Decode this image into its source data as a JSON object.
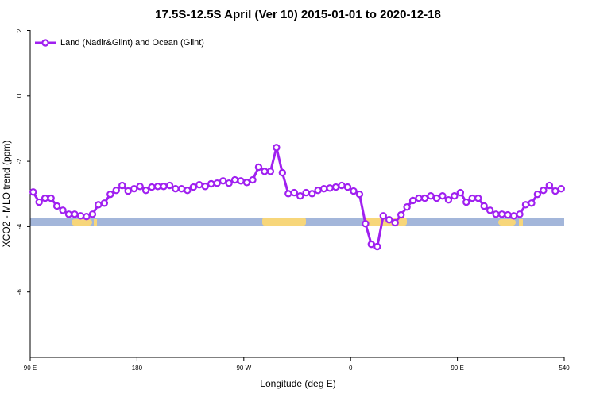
{
  "chart_data": {
    "type": "line",
    "title": "17.5S-12.5S April (Ver 10)   2015-01-01 to 2020-12-18",
    "x_label": "Longitude (deg E)",
    "y_label": "XCO2 - MLO trend (ppm)",
    "x": [
      92.5,
      97.5,
      102.5,
      107.5,
      112.5,
      117.5,
      122.5,
      127.5,
      132.5,
      137.5,
      142.5,
      147.5,
      152.5,
      157.5,
      162.5,
      167.5,
      172.5,
      177.5,
      182.5,
      187.5,
      192.5,
      197.5,
      202.5,
      207.5,
      212.5,
      217.5,
      222.5,
      227.5,
      232.5,
      237.5,
      242.5,
      247.5,
      252.5,
      257.5,
      262.5,
      267.5,
      272.5,
      277.5,
      282.5,
      287.5,
      292.5,
      297.5,
      302.5,
      307.5,
      312.5,
      317.5,
      322.5,
      327.5,
      332.5,
      337.5,
      342.5,
      347.5,
      352.5,
      357.5,
      362.5,
      367.5,
      372.5,
      377.5,
      382.5,
      387.5,
      392.5,
      397.5,
      402.5,
      407.5,
      412.5,
      417.5,
      422.5,
      427.5,
      432.5,
      437.5,
      442.5,
      447.5,
      452.5,
      457.5,
      462.5,
      467.5,
      472.5,
      477.5,
      482.5,
      487.5,
      492.5,
      497.5,
      502.5,
      507.5,
      512.5,
      517.5,
      522.5,
      527.5,
      532.5,
      537.5
    ],
    "series": [
      {
        "name": "Land (Nadir&Glint) and Ocean (Glint)",
        "color": "#a020f0",
        "values": [
          -2.94,
          -3.25,
          -3.13,
          -3.13,
          -3.37,
          -3.5,
          -3.62,
          -3.62,
          -3.67,
          -3.69,
          -3.62,
          -3.33,
          -3.28,
          -3.01,
          -2.89,
          -2.74,
          -2.91,
          -2.84,
          -2.77,
          -2.89,
          -2.79,
          -2.77,
          -2.77,
          -2.74,
          -2.84,
          -2.84,
          -2.89,
          -2.79,
          -2.72,
          -2.77,
          -2.69,
          -2.67,
          -2.6,
          -2.67,
          -2.57,
          -2.6,
          -2.65,
          -2.57,
          -2.18,
          -2.31,
          -2.31,
          -1.58,
          -2.35,
          -2.99,
          -2.96,
          -3.06,
          -2.96,
          -2.99,
          -2.89,
          -2.84,
          -2.82,
          -2.79,
          -2.74,
          -2.79,
          -2.91,
          -3.01,
          -3.91,
          -4.54,
          -4.61,
          -3.67,
          -3.79,
          -3.88,
          -3.64,
          -3.4,
          -3.2,
          -3.13,
          -3.13,
          -3.06,
          -3.13,
          -3.06,
          -3.18,
          -3.06,
          -2.96,
          -3.25,
          -3.13,
          -3.13,
          -3.37,
          -3.5,
          -3.62,
          -3.62,
          -3.64,
          -3.67,
          -3.62,
          -3.33,
          -3.28,
          -3.01,
          -2.89,
          -2.74,
          -2.91,
          -2.84
        ]
      }
    ],
    "xlim": [
      90,
      540
    ],
    "xticks": [
      {
        "value": 90,
        "label": "90 E"
      },
      180,
      {
        "value": 270,
        "label": "90 W"
      },
      {
        "value": 360,
        "label": "0"
      },
      {
        "value": 450,
        "label": "90 E"
      },
      540
    ],
    "ylim": [
      -8,
      2
    ],
    "yticks": [
      -6,
      -4,
      -2,
      0,
      2
    ],
    "legend": "top-left"
  }
}
